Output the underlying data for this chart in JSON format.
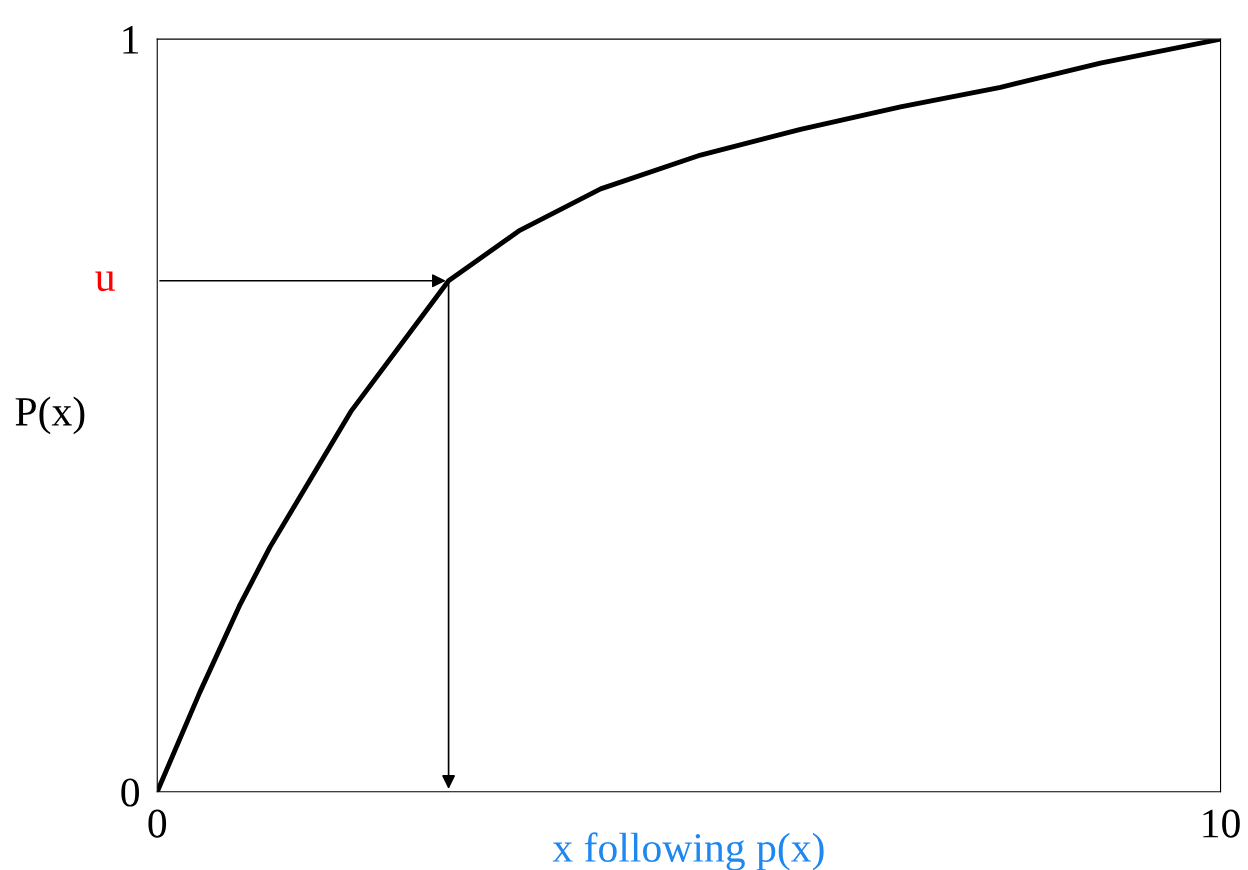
{
  "chart_data": {
    "type": "line",
    "xlabel": "x following p(x)",
    "ylabel": "P(x)",
    "x": [
      0,
      0.4,
      0.78,
      1.06,
      1.82,
      2.74,
      3.41,
      4.17,
      5.11,
      6.05,
      6.99,
      7.93,
      8.87,
      10
    ],
    "series": [
      {
        "color": "#000000",
        "values": [
          0,
          0.132,
          0.249,
          0.325,
          0.505,
          0.679,
          0.746,
          0.801,
          0.846,
          0.88,
          0.91,
          0.936,
          0.968,
          1.0
        ]
      }
    ],
    "xlim": [
      0,
      10
    ],
    "ylim": [
      0,
      1
    ],
    "xticks": [
      0,
      10
    ],
    "yticks": [
      0,
      1
    ],
    "annotations": [
      {
        "text": "u",
        "x": 2.74,
        "y": 0.679
      }
    ],
    "grid": false,
    "legend": false,
    "marker": "none",
    "line_style": "solid"
  }
}
